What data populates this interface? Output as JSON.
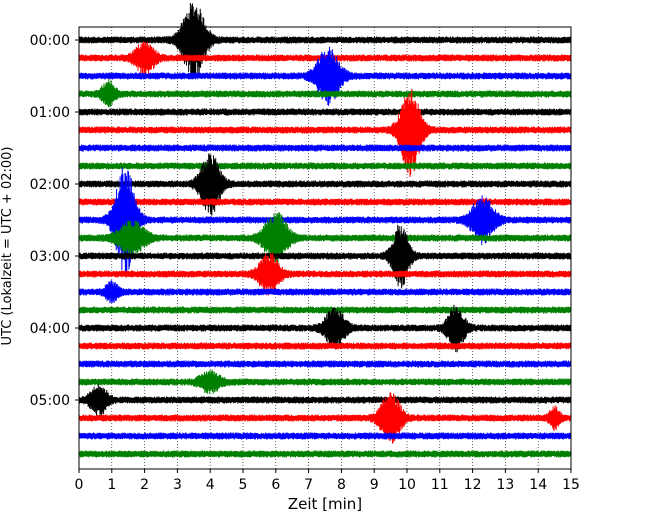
{
  "chart_data": {
    "type": "line",
    "title": "",
    "xlabel": "Zeit  [min]",
    "ylabel": "UTC (Lokalzeit = UTC + 02:00)",
    "xlim": [
      0,
      15
    ],
    "xticks": [
      "0",
      "1",
      "2",
      "3",
      "4",
      "5",
      "6",
      "7",
      "8",
      "9",
      "10",
      "11",
      "12",
      "13",
      "14",
      "15"
    ],
    "yticks": [
      "00:00",
      "01:00",
      "02:00",
      "03:00",
      "04:00",
      "05:00"
    ],
    "trace_interval_min": 15,
    "trace_colors": [
      "#000000",
      "#ff0000",
      "#0000ff",
      "#008000"
    ],
    "grid": "vertical dotted lines at each minute",
    "series": [
      {
        "start": "00:00",
        "color": "#000000",
        "events": [
          [
            3.5,
            3.0,
            0.7
          ]
        ]
      },
      {
        "start": "00:15",
        "color": "#ff0000",
        "events": [
          [
            2.0,
            1.2,
            0.6
          ]
        ]
      },
      {
        "start": "00:30",
        "color": "#0000ff",
        "events": [
          [
            7.6,
            2.2,
            0.7
          ]
        ]
      },
      {
        "start": "00:45",
        "color": "#008000",
        "events": [
          [
            0.9,
            1.0,
            0.4
          ]
        ]
      },
      {
        "start": "01:00",
        "color": "#000000",
        "events": []
      },
      {
        "start": "01:15",
        "color": "#ff0000",
        "events": [
          [
            10.1,
            3.6,
            0.6
          ]
        ]
      },
      {
        "start": "01:30",
        "color": "#0000ff",
        "events": []
      },
      {
        "start": "01:45",
        "color": "#008000",
        "events": []
      },
      {
        "start": "02:00",
        "color": "#000000",
        "events": [
          [
            4.0,
            2.4,
            0.6
          ]
        ]
      },
      {
        "start": "02:15",
        "color": "#ff0000",
        "events": []
      },
      {
        "start": "02:30",
        "color": "#0000ff",
        "events": [
          [
            1.4,
            4.5,
            0.6
          ],
          [
            12.3,
            1.8,
            0.7
          ]
        ]
      },
      {
        "start": "02:45",
        "color": "#008000",
        "events": [
          [
            1.6,
            1.3,
            0.8
          ],
          [
            6.0,
            2.0,
            0.7
          ]
        ]
      },
      {
        "start": "03:00",
        "color": "#000000",
        "events": [
          [
            9.8,
            2.5,
            0.5
          ]
        ]
      },
      {
        "start": "03:15",
        "color": "#ff0000",
        "events": [
          [
            5.8,
            1.6,
            0.6
          ]
        ]
      },
      {
        "start": "03:30",
        "color": "#0000ff",
        "events": [
          [
            1.0,
            0.7,
            0.4
          ]
        ]
      },
      {
        "start": "03:45",
        "color": "#008000",
        "events": []
      },
      {
        "start": "04:00",
        "color": "#000000",
        "events": [
          [
            7.8,
            1.6,
            0.6
          ],
          [
            11.5,
            1.8,
            0.5
          ]
        ]
      },
      {
        "start": "04:15",
        "color": "#ff0000",
        "events": []
      },
      {
        "start": "04:30",
        "color": "#0000ff",
        "events": []
      },
      {
        "start": "04:45",
        "color": "#008000",
        "events": [
          [
            4.0,
            0.8,
            0.6
          ]
        ]
      },
      {
        "start": "05:00",
        "color": "#000000",
        "events": [
          [
            0.6,
            1.2,
            0.5
          ]
        ]
      },
      {
        "start": "05:15",
        "color": "#ff0000",
        "events": [
          [
            9.5,
            2.0,
            0.6
          ],
          [
            14.5,
            0.8,
            0.3
          ]
        ]
      },
      {
        "start": "05:30",
        "color": "#0000ff",
        "events": []
      },
      {
        "start": "05:45",
        "color": "#008000",
        "events": []
      }
    ]
  }
}
